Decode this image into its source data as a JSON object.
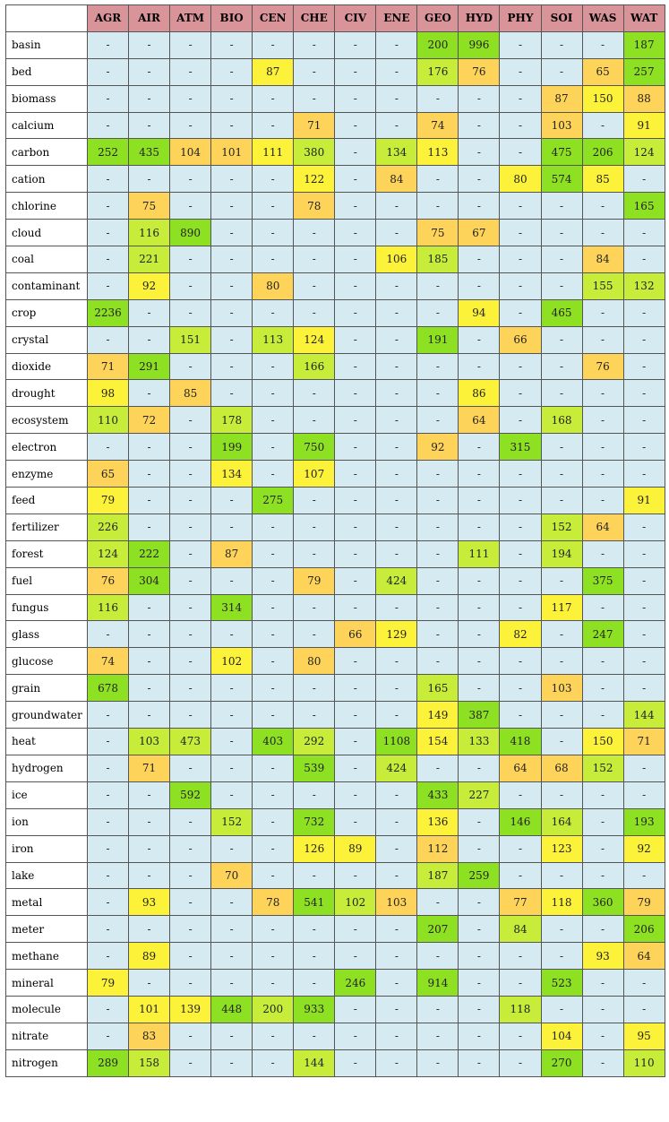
{
  "chart_data": {
    "type": "heatmap",
    "empty_marker": "-",
    "colors": {
      "header": "#d9949a",
      "empty": "#d6eaf1",
      "low": "#fdd35a",
      "mid": "#fcf23a",
      "high_mid": "#c7ec3a",
      "high": "#8ee022",
      "border": "#555555"
    },
    "columns": [
      "AGR",
      "AIR",
      "ATM",
      "BIO",
      "CEN",
      "CHE",
      "CIV",
      "ENE",
      "GEO",
      "HYD",
      "PHY",
      "SOI",
      "WAS",
      "WAT"
    ],
    "rows": [
      {
        "label": "basin",
        "values": [
          null,
          null,
          null,
          null,
          null,
          null,
          null,
          null,
          200,
          996,
          null,
          null,
          null,
          187
        ]
      },
      {
        "label": "bed",
        "values": [
          null,
          null,
          null,
          null,
          87,
          null,
          null,
          null,
          176,
          76,
          null,
          null,
          65,
          257
        ]
      },
      {
        "label": "biomass",
        "values": [
          null,
          null,
          null,
          null,
          null,
          null,
          null,
          null,
          null,
          null,
          null,
          87,
          150,
          88
        ]
      },
      {
        "label": "calcium",
        "values": [
          null,
          null,
          null,
          null,
          null,
          71,
          null,
          null,
          74,
          null,
          null,
          103,
          null,
          91
        ]
      },
      {
        "label": "carbon",
        "values": [
          252,
          435,
          104,
          101,
          111,
          380,
          null,
          134,
          113,
          null,
          null,
          475,
          206,
          124
        ]
      },
      {
        "label": "cation",
        "values": [
          null,
          null,
          null,
          null,
          null,
          122,
          null,
          84,
          null,
          null,
          80,
          574,
          85,
          null
        ]
      },
      {
        "label": "chlorine",
        "values": [
          null,
          75,
          null,
          null,
          null,
          78,
          null,
          null,
          null,
          null,
          null,
          null,
          null,
          165
        ]
      },
      {
        "label": "cloud",
        "values": [
          null,
          116,
          890,
          null,
          null,
          null,
          null,
          null,
          75,
          67,
          null,
          null,
          null,
          null
        ]
      },
      {
        "label": "coal",
        "values": [
          null,
          221,
          null,
          null,
          null,
          null,
          null,
          106,
          185,
          null,
          null,
          null,
          84,
          null
        ]
      },
      {
        "label": "contaminant",
        "values": [
          null,
          92,
          null,
          null,
          80,
          null,
          null,
          null,
          null,
          null,
          null,
          null,
          155,
          132
        ]
      },
      {
        "label": "crop",
        "values": [
          2236,
          null,
          null,
          null,
          null,
          null,
          null,
          null,
          null,
          94,
          null,
          465,
          null,
          null
        ]
      },
      {
        "label": "crystal",
        "values": [
          null,
          null,
          151,
          null,
          113,
          124,
          null,
          null,
          191,
          null,
          66,
          null,
          null,
          null
        ]
      },
      {
        "label": "dioxide",
        "values": [
          71,
          291,
          null,
          null,
          null,
          166,
          null,
          null,
          null,
          null,
          null,
          null,
          76,
          null
        ]
      },
      {
        "label": "drought",
        "values": [
          98,
          null,
          85,
          null,
          null,
          null,
          null,
          null,
          null,
          86,
          null,
          null,
          null,
          null
        ]
      },
      {
        "label": "ecosystem",
        "values": [
          110,
          72,
          null,
          178,
          null,
          null,
          null,
          null,
          null,
          64,
          null,
          168,
          null,
          null
        ]
      },
      {
        "label": "electron",
        "values": [
          null,
          null,
          null,
          199,
          null,
          750,
          null,
          null,
          92,
          null,
          315,
          null,
          null,
          null
        ]
      },
      {
        "label": "enzyme",
        "values": [
          65,
          null,
          null,
          134,
          null,
          107,
          null,
          null,
          null,
          null,
          null,
          null,
          null,
          null
        ]
      },
      {
        "label": "feed",
        "values": [
          79,
          null,
          null,
          null,
          275,
          null,
          null,
          null,
          null,
          null,
          null,
          null,
          null,
          91
        ]
      },
      {
        "label": "fertilizer",
        "values": [
          226,
          null,
          null,
          null,
          null,
          null,
          null,
          null,
          null,
          null,
          null,
          152,
          64,
          null
        ]
      },
      {
        "label": "forest",
        "values": [
          124,
          222,
          null,
          87,
          null,
          null,
          null,
          null,
          null,
          111,
          null,
          194,
          null,
          null
        ]
      },
      {
        "label": "fuel",
        "values": [
          76,
          304,
          null,
          null,
          null,
          79,
          null,
          424,
          null,
          null,
          null,
          null,
          375,
          null
        ]
      },
      {
        "label": "fungus",
        "values": [
          116,
          null,
          null,
          314,
          null,
          null,
          null,
          null,
          null,
          null,
          null,
          117,
          null,
          null
        ]
      },
      {
        "label": "glass",
        "values": [
          null,
          null,
          null,
          null,
          null,
          null,
          66,
          129,
          null,
          null,
          82,
          null,
          247,
          null
        ]
      },
      {
        "label": "glucose",
        "values": [
          74,
          null,
          null,
          102,
          null,
          80,
          null,
          null,
          null,
          null,
          null,
          null,
          null,
          null
        ]
      },
      {
        "label": "grain",
        "values": [
          678,
          null,
          null,
          null,
          null,
          null,
          null,
          null,
          165,
          null,
          null,
          103,
          null,
          null
        ]
      },
      {
        "label": "groundwater",
        "values": [
          null,
          null,
          null,
          null,
          null,
          null,
          null,
          null,
          149,
          387,
          null,
          null,
          null,
          144
        ]
      },
      {
        "label": "heat",
        "values": [
          null,
          103,
          473,
          null,
          403,
          292,
          null,
          1108,
          154,
          133,
          418,
          null,
          150,
          71
        ]
      },
      {
        "label": "hydrogen",
        "values": [
          null,
          71,
          null,
          null,
          null,
          539,
          null,
          424,
          null,
          null,
          64,
          68,
          152,
          null
        ]
      },
      {
        "label": "ice",
        "values": [
          null,
          null,
          592,
          null,
          null,
          null,
          null,
          null,
          433,
          227,
          null,
          null,
          null,
          null
        ]
      },
      {
        "label": "ion",
        "values": [
          null,
          null,
          null,
          152,
          null,
          732,
          null,
          null,
          136,
          null,
          146,
          164,
          null,
          193
        ]
      },
      {
        "label": "iron",
        "values": [
          null,
          null,
          null,
          null,
          null,
          126,
          89,
          null,
          112,
          null,
          null,
          123,
          null,
          92
        ]
      },
      {
        "label": "lake",
        "values": [
          null,
          null,
          null,
          70,
          null,
          null,
          null,
          null,
          187,
          259,
          null,
          null,
          null,
          null
        ]
      },
      {
        "label": "metal",
        "values": [
          null,
          93,
          null,
          null,
          78,
          541,
          102,
          103,
          null,
          null,
          77,
          118,
          360,
          79
        ]
      },
      {
        "label": "meter",
        "values": [
          null,
          null,
          null,
          null,
          null,
          null,
          null,
          null,
          207,
          null,
          84,
          null,
          null,
          206
        ]
      },
      {
        "label": "methane",
        "values": [
          null,
          89,
          null,
          null,
          null,
          null,
          null,
          null,
          null,
          null,
          null,
          null,
          93,
          64
        ]
      },
      {
        "label": "mineral",
        "values": [
          79,
          null,
          null,
          null,
          null,
          null,
          246,
          null,
          914,
          null,
          null,
          523,
          null,
          null
        ]
      },
      {
        "label": "molecule",
        "values": [
          null,
          101,
          139,
          448,
          200,
          933,
          null,
          null,
          null,
          null,
          118,
          null,
          null,
          null
        ]
      },
      {
        "label": "nitrate",
        "values": [
          null,
          83,
          null,
          null,
          null,
          null,
          null,
          null,
          null,
          null,
          null,
          104,
          null,
          95
        ]
      },
      {
        "label": "nitrogen",
        "values": [
          289,
          158,
          null,
          null,
          null,
          144,
          null,
          null,
          null,
          null,
          null,
          270,
          null,
          110
        ]
      }
    ]
  }
}
